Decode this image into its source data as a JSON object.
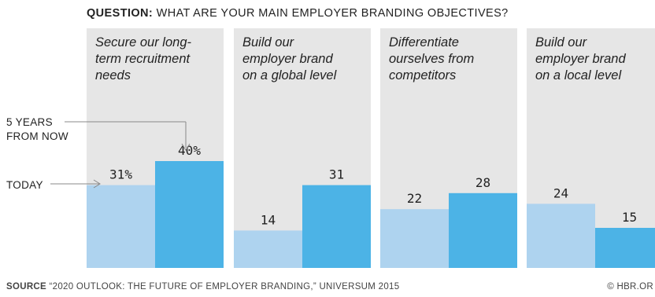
{
  "question": {
    "label": "QUESTION:",
    "text": "WHAT ARE YOUR MAIN EMPLOYER BRANDING OBJECTIVES?"
  },
  "legend": {
    "future": "5 YEARS FROM NOW",
    "today": "TODAY"
  },
  "source": {
    "label": "SOURCE",
    "text": "“2020 OUTLOOK: THE FUTURE OF EMPLOYER BRANDING,” UNIVERSUM 2015"
  },
  "credit": "© HBR.OR",
  "colors": {
    "panel": "#e6e6e6",
    "today": "#aed3ef",
    "future": "#4cb3e6"
  },
  "chart_data": {
    "type": "bar",
    "categories": [
      "Secure our long-term recruitment needs",
      "Build our employer brand on a global level",
      "Differentiate ourselves from competitors",
      "Build our employer brand on a local level"
    ],
    "category_lines": [
      [
        "Secure our long-",
        "term recruitment",
        "needs"
      ],
      [
        "Build our",
        "employer brand",
        "on a global level"
      ],
      [
        "Differentiate",
        "ourselves from",
        "competitors"
      ],
      [
        "Build our",
        "employer brand",
        "on a local level"
      ]
    ],
    "series": [
      {
        "name": "TODAY",
        "values": [
          31,
          14,
          22,
          24
        ],
        "labels": [
          "31%",
          "14",
          "22",
          "24"
        ]
      },
      {
        "name": "5 YEARS FROM NOW",
        "values": [
          40,
          31,
          28,
          15
        ],
        "labels": [
          "40%",
          "31",
          "28",
          "15"
        ]
      }
    ],
    "ylim": [
      0,
      100
    ]
  }
}
